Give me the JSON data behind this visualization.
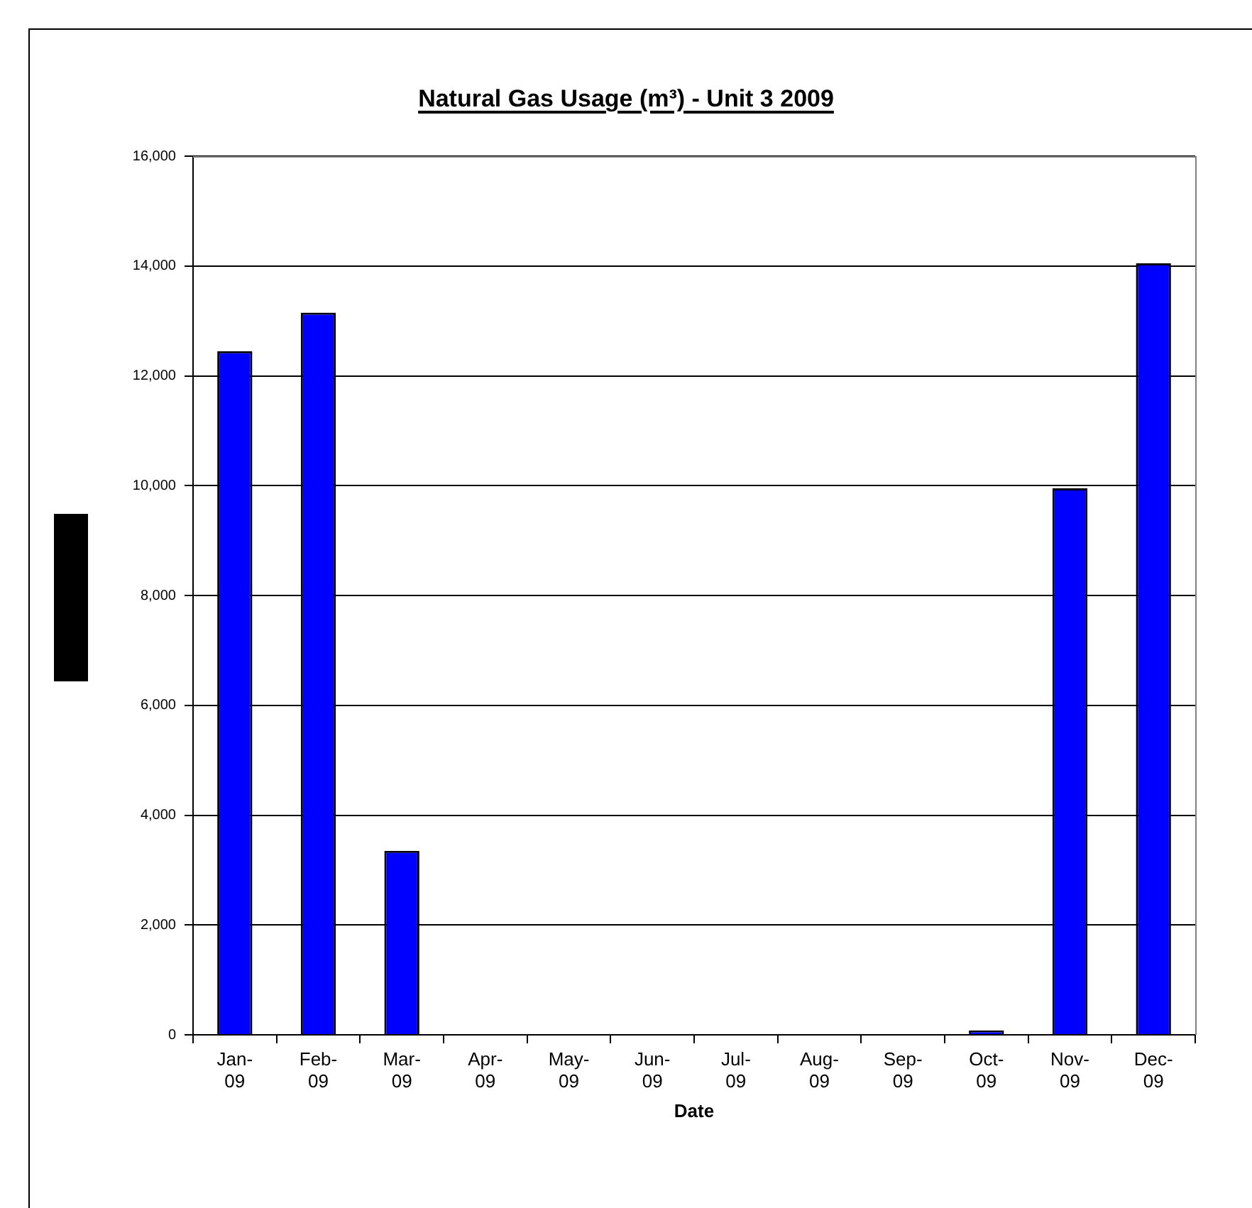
{
  "chart_data": {
    "type": "bar",
    "title": "Natural Gas Usage (m³) - Unit 3 2009",
    "xlabel": "Date",
    "categories": [
      "Jan-09",
      "Feb-09",
      "Mar-09",
      "Apr-09",
      "May-09",
      "Jun-09",
      "Jul-09",
      "Aug-09",
      "Sep-09",
      "Oct-09",
      "Nov-09",
      "Dec-09"
    ],
    "values": [
      12450,
      13150,
      3350,
      0,
      0,
      0,
      0,
      0,
      0,
      80,
      9950,
      14050
    ],
    "color": "#0000ff",
    "ylim": [
      0,
      16000
    ],
    "yticks": [
      0,
      {
        "value": 2000,
        "label": "2,000"
      },
      {
        "value": 4000,
        "label": "4,000"
      },
      {
        "value": 6000,
        "label": "6,000"
      },
      {
        "value": 8000,
        "label": "8,000"
      },
      {
        "value": 10000,
        "label": "10,000"
      },
      {
        "value": 12000,
        "label": "12,000"
      },
      {
        "value": 14000,
        "label": "14,000"
      },
      {
        "value": 16000,
        "label": "16,000"
      }
    ],
    "grid": "y"
  }
}
